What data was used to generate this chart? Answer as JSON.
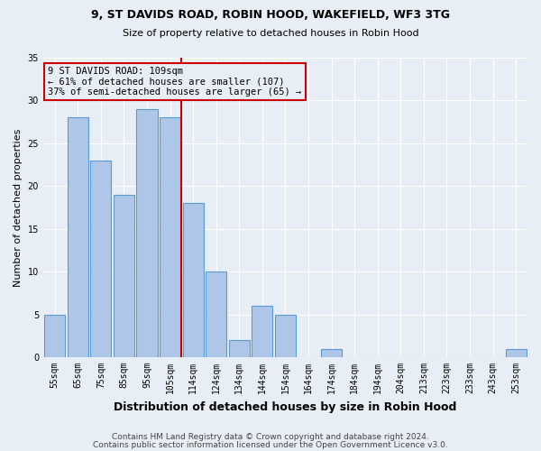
{
  "title1": "9, ST DAVIDS ROAD, ROBIN HOOD, WAKEFIELD, WF3 3TG",
  "title2": "Size of property relative to detached houses in Robin Hood",
  "xlabel": "Distribution of detached houses by size in Robin Hood",
  "ylabel": "Number of detached properties",
  "categories": [
    "55sqm",
    "65sqm",
    "75sqm",
    "85sqm",
    "95sqm",
    "105sqm",
    "114sqm",
    "124sqm",
    "134sqm",
    "144sqm",
    "154sqm",
    "164sqm",
    "174sqm",
    "184sqm",
    "194sqm",
    "204sqm",
    "213sqm",
    "223sqm",
    "233sqm",
    "243sqm",
    "253sqm"
  ],
  "values": [
    5,
    28,
    23,
    19,
    29,
    28,
    18,
    10,
    2,
    6,
    5,
    0,
    1,
    0,
    0,
    0,
    0,
    0,
    0,
    0,
    1
  ],
  "bar_color": "#aec6e8",
  "bar_edgecolor": "#5b9bd5",
  "highlight_color": "#cc0000",
  "annotation_text": "9 ST DAVIDS ROAD: 109sqm\n← 61% of detached houses are smaller (107)\n37% of semi-detached houses are larger (65) →",
  "annotation_box_color": "#cc0000",
  "ylim": [
    0,
    35
  ],
  "yticks": [
    0,
    5,
    10,
    15,
    20,
    25,
    30,
    35
  ],
  "footer1": "Contains HM Land Registry data © Crown copyright and database right 2024.",
  "footer2": "Contains public sector information licensed under the Open Government Licence v3.0.",
  "background_color": "#e8eef5",
  "grid_color": "#ffffff"
}
